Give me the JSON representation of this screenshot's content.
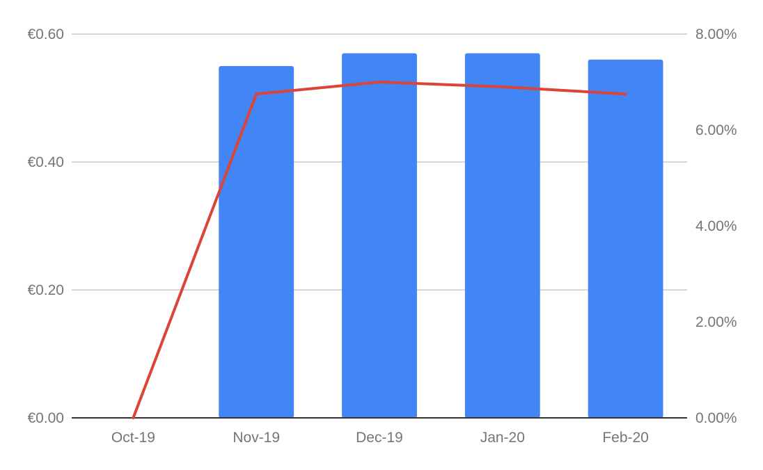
{
  "chart_data": {
    "type": "bar",
    "categories": [
      "Oct-19",
      "Nov-19",
      "Dec-19",
      "Jan-20",
      "Feb-20"
    ],
    "series": [
      {
        "type": "bar",
        "axis": "left",
        "values": [
          0.0,
          0.55,
          0.57,
          0.57,
          0.56
        ],
        "color": "#4285f4"
      },
      {
        "type": "line",
        "axis": "right",
        "values": [
          0.0,
          6.75,
          7.0,
          6.9,
          6.75
        ],
        "color": "#db4437"
      }
    ],
    "y_left": {
      "range": [
        0,
        0.6
      ],
      "ticks": [
        "€0.00",
        "€0.20",
        "€0.40",
        "€0.60"
      ]
    },
    "y_right": {
      "range": [
        0,
        8
      ],
      "ticks": [
        "0.00%",
        "2.00%",
        "4.00%",
        "6.00%",
        "8.00%"
      ]
    },
    "grid": true,
    "legend": "none",
    "title": "",
    "xlabel": "",
    "ylabel": ""
  }
}
